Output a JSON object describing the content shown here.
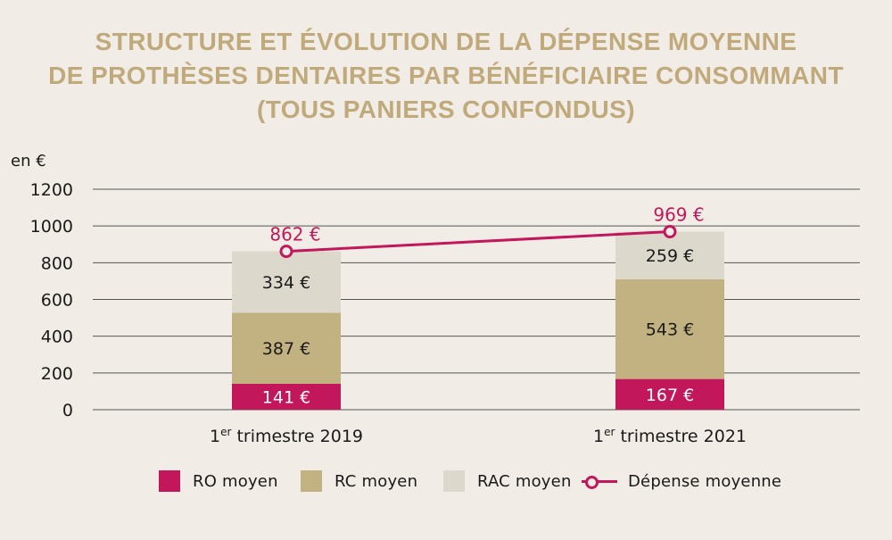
{
  "title_lines": [
    "STRUCTURE ET ÉVOLUTION DE LA DÉPENSE MOYENNE",
    "DE PROTHÈSES DENTAIRES PAR BÉNÉFICIAIRE CONSOMMANT",
    "(TOUS PANIERS CONFONDUS)"
  ],
  "colors": {
    "ro": "#c2185b",
    "rc": "#c2b281",
    "rac": "#dcd9cc",
    "line": "#c2185b",
    "title": "#c0a97a",
    "grid": "#555555",
    "text": "#1a1a1a",
    "background": "#f1ede6"
  },
  "chart_data": {
    "type": "bar",
    "stacked": true,
    "unit_label": "en €",
    "ylim": [
      0,
      1200
    ],
    "yticks": [
      0,
      200,
      400,
      600,
      800,
      1000,
      1200
    ],
    "categories": [
      {
        "sup": "er",
        "prefix": "1",
        "rest": " trimestre 2019"
      },
      {
        "sup": "er",
        "prefix": "1",
        "rest": " trimestre 2021"
      }
    ],
    "series": [
      {
        "name": "RO moyen",
        "key": "ro",
        "values": [
          141,
          167
        ],
        "labels": [
          "141 €",
          "167 €"
        ]
      },
      {
        "name": "RC moyen",
        "key": "rc",
        "values": [
          387,
          543
        ],
        "labels": [
          "387 €",
          "543 €"
        ]
      },
      {
        "name": "RAC moyen",
        "key": "rac",
        "values": [
          334,
          259
        ],
        "labels": [
          "334 €",
          "259 €"
        ]
      }
    ],
    "line": {
      "name": "Dépense moyenne",
      "values": [
        862,
        969
      ],
      "labels": [
        "862 €",
        "969 €"
      ]
    }
  },
  "legend": {
    "ro": "RO moyen",
    "rc": "RC moyen",
    "rac": "RAC moyen",
    "line": "Dépense moyenne"
  }
}
